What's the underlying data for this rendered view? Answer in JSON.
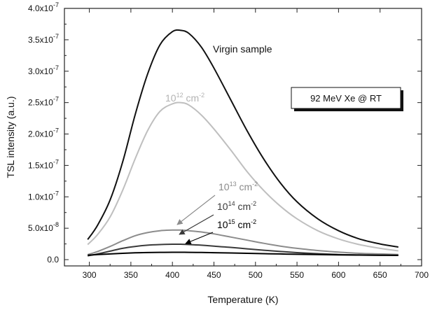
{
  "chart_data": {
    "type": "line",
    "title": "",
    "xlabel": "Temperature (K)",
    "ylabel": "TSL intensity (a.u.)",
    "xlim": [
      270,
      700
    ],
    "ylim": [
      -1e-08,
      4e-07
    ],
    "x_ticks": [
      300,
      350,
      400,
      450,
      500,
      550,
      600,
      650,
      700
    ],
    "x_tick_labels": [
      "300",
      "350",
      "400",
      "450",
      "500",
      "550",
      "600",
      "650",
      "700"
    ],
    "y_ticks": [
      0,
      5e-08,
      1e-07,
      1.5e-07,
      2e-07,
      2.5e-07,
      3e-07,
      3.5e-07,
      4e-07
    ],
    "y_tick_labels": [
      {
        "mantissa": "0.0",
        "exp": ""
      },
      {
        "mantissa": "5.0x10",
        "exp": "-8"
      },
      {
        "mantissa": "1.0x10",
        "exp": "-7"
      },
      {
        "mantissa": "1.5x10",
        "exp": "-7"
      },
      {
        "mantissa": "2.0x10",
        "exp": "-7"
      },
      {
        "mantissa": "2.5x10",
        "exp": "-7"
      },
      {
        "mantissa": "3.0x10",
        "exp": "-7"
      },
      {
        "mantissa": "3.5x10",
        "exp": "-7"
      },
      {
        "mantissa": "4.0x10",
        "exp": "-7"
      }
    ],
    "grid": false,
    "annotation_box": "92 MeV Xe @ RT",
    "x": [
      298,
      310,
      325,
      340,
      355,
      370,
      385,
      400,
      410,
      420,
      435,
      450,
      470,
      490,
      510,
      530,
      550,
      575,
      600,
      625,
      650,
      672
    ],
    "series": [
      {
        "name": "Virgin sample",
        "label_base": "Virgin sample",
        "label_exp": "",
        "color": "#111111",
        "values": [
          3.2e-08,
          5.5e-08,
          9.5e-08,
          1.55e-07,
          2.3e-07,
          2.95e-07,
          3.42e-07,
          3.63e-07,
          3.65e-07,
          3.6e-07,
          3.38e-07,
          3.05e-07,
          2.55e-07,
          2.05e-07,
          1.6e-07,
          1.22e-07,
          9.2e-08,
          6.5e-08,
          4.6e-08,
          3.3e-08,
          2.5e-08,
          2e-08
        ]
      },
      {
        "name": "10^12 cm^-2",
        "label_base": "10",
        "label_exp": "12",
        "label_unit": " cm",
        "label_unit_exp": "-2",
        "color": "#bfbfbf",
        "values": [
          2.4e-08,
          4e-08,
          6.8e-08,
          1.1e-07,
          1.6e-07,
          2.05e-07,
          2.36e-07,
          2.48e-07,
          2.5e-07,
          2.46e-07,
          2.3e-07,
          2.08e-07,
          1.75e-07,
          1.4e-07,
          1.1e-07,
          8.5e-08,
          6.5e-08,
          4.6e-08,
          3.3e-08,
          2.4e-08,
          1.8e-08,
          1.4e-08
        ]
      },
      {
        "name": "10^13 cm^-2",
        "label_base": "10",
        "label_exp": "13",
        "label_unit": " cm",
        "label_unit_exp": "-2",
        "color": "#8c8c8c",
        "values": [
          8e-09,
          1.3e-08,
          2.1e-08,
          3e-08,
          3.8e-08,
          4.3e-08,
          4.6e-08,
          4.7e-08,
          4.7e-08,
          4.6e-08,
          4.4e-08,
          4.1e-08,
          3.6e-08,
          3.1e-08,
          2.6e-08,
          2.15e-08,
          1.8e-08,
          1.45e-08,
          1.2e-08,
          1e-08,
          9e-09,
          8e-09
        ]
      },
      {
        "name": "10^14 cm^-2",
        "label_base": "10",
        "label_exp": "14",
        "label_unit": " cm",
        "label_unit_exp": "-2",
        "color": "#3a3a3a",
        "values": [
          6e-09,
          9e-09,
          1.35e-08,
          1.8e-08,
          2.1e-08,
          2.3e-08,
          2.4e-08,
          2.45e-08,
          2.45e-08,
          2.4e-08,
          2.3e-08,
          2.15e-08,
          1.95e-08,
          1.72e-08,
          1.5e-08,
          1.3e-08,
          1.12e-08,
          9.5e-09,
          8.2e-09,
          7.5e-09,
          7e-09,
          6.8e-09
        ]
      },
      {
        "name": "10^15 cm^-2",
        "label_base": "10",
        "label_exp": "15",
        "label_unit": " cm",
        "label_unit_exp": "-2",
        "color": "#000000",
        "values": [
          7e-09,
          8e-09,
          9e-09,
          1e-08,
          1.08e-08,
          1.13e-08,
          1.16e-08,
          1.17e-08,
          1.17e-08,
          1.16e-08,
          1.14e-08,
          1.11e-08,
          1.06e-08,
          1e-08,
          9.5e-09,
          9e-09,
          8.5e-09,
          8e-09,
          7.6e-09,
          7.3e-09,
          7e-09,
          6.8e-09
        ]
      }
    ]
  }
}
